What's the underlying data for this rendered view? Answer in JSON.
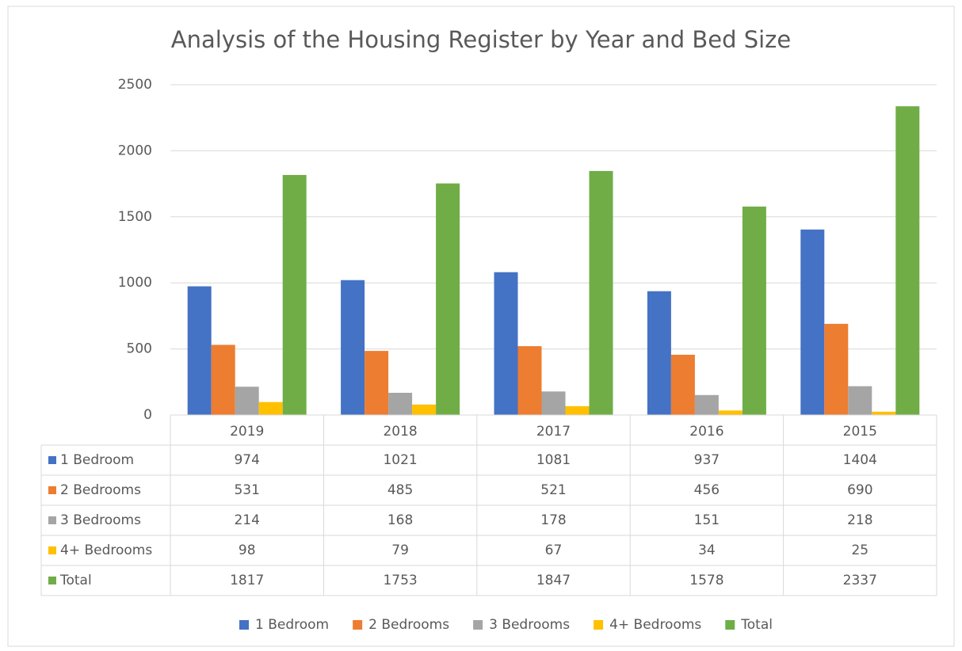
{
  "chart_data": {
    "type": "bar",
    "title": "Analysis of the Housing Register by Year and Bed Size",
    "categories": [
      "2019",
      "2018",
      "2017",
      "2016",
      "2015"
    ],
    "series": [
      {
        "name": "1 Bedroom",
        "color": "#4472c4",
        "values": [
          974,
          1021,
          1081,
          937,
          1404
        ]
      },
      {
        "name": "2 Bedrooms",
        "color": "#ed7d31",
        "values": [
          531,
          485,
          521,
          456,
          690
        ]
      },
      {
        "name": "3 Bedrooms",
        "color": "#a5a5a5",
        "values": [
          214,
          168,
          178,
          151,
          218
        ]
      },
      {
        "name": "4+ Bedrooms",
        "color": "#ffc000",
        "values": [
          98,
          79,
          67,
          34,
          25
        ]
      },
      {
        "name": "Total",
        "color": "#70ad47",
        "values": [
          1817,
          1753,
          1847,
          1578,
          2337
        ]
      }
    ],
    "ylim": [
      0,
      2500
    ],
    "yticks": [
      0,
      500,
      1000,
      1500,
      2000,
      2500
    ],
    "grid": true,
    "legend": "bottom"
  }
}
